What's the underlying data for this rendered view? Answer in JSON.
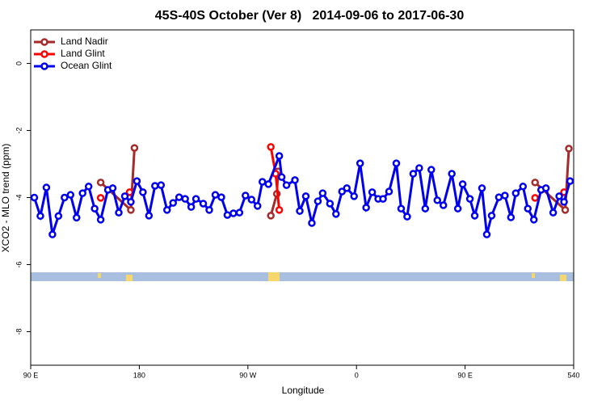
{
  "chart_data": {
    "type": "line",
    "title": "45S-40S October (Ver 8)   2014-09-06 to 2017-06-30",
    "xlabel": "Longitude",
    "ylabel": "XCO2 - MLO trend (ppm)",
    "xlim": [
      90,
      540
    ],
    "xticks": [
      {
        "value": 90,
        "label": "90 E"
      },
      180,
      {
        "value": 270,
        "label": "90 W"
      },
      {
        "value": 360,
        "label": "0"
      },
      {
        "value": 450,
        "label": "90 E"
      },
      540
    ],
    "ylim": [
      -9,
      1
    ],
    "yticks": [
      0,
      -2,
      -4,
      -6,
      -8
    ],
    "legend": "top-left",
    "series": [
      {
        "name": "Land Nadir",
        "color": "#a52a2a",
        "x": [
          148,
          173,
          176,
          null,
          289,
          294,
          295,
          null,
          508,
          533,
          536
        ],
        "values": [
          -3.55,
          -4.37,
          -2.52,
          null,
          -4.54,
          -3.89,
          -3.22,
          null,
          -3.55,
          -4.37,
          -2.54
        ]
      },
      {
        "name": "Land Glint",
        "color": "#ff0000",
        "x": [
          148,
          null,
          172,
          null,
          289,
          293,
          296,
          null,
          508,
          null,
          532
        ],
        "values": [
          -4.01,
          null,
          -3.84,
          null,
          -2.49,
          -3.29,
          -4.37,
          null,
          -4.01,
          null,
          -3.84
        ]
      },
      {
        "name": "Ocean Glint",
        "color": "#0000ee",
        "x": [
          93,
          98,
          103,
          108,
          113,
          118,
          123,
          128,
          133,
          138,
          143,
          148,
          154,
          158,
          163,
          168,
          173,
          178,
          183,
          188,
          193,
          198,
          203,
          208,
          213,
          218,
          223,
          227,
          233,
          238,
          243,
          248,
          253,
          258,
          263,
          268,
          273,
          278,
          282,
          287,
          296,
          298,
          302,
          309,
          313,
          318,
          323,
          328,
          332,
          338,
          343,
          348,
          352,
          358,
          363,
          368,
          373,
          378,
          382,
          387,
          393,
          397,
          402,
          407,
          412,
          417,
          422,
          427,
          432,
          439,
          444,
          448,
          454,
          458,
          464,
          468,
          472,
          478,
          483,
          488,
          492,
          498,
          502,
          507,
          513,
          517,
          523,
          528,
          532,
          537
        ],
        "values": [
          -4.0,
          -4.55,
          -3.7,
          -5.1,
          -4.55,
          -4.0,
          -3.92,
          -4.6,
          -3.87,
          -3.67,
          -4.33,
          -4.66,
          -3.77,
          -3.72,
          -4.45,
          -3.96,
          -4.13,
          -3.51,
          -3.84,
          -4.54,
          -3.65,
          -3.63,
          -4.37,
          -4.16,
          -3.99,
          -4.04,
          -4.28,
          -4.04,
          -4.18,
          -4.37,
          -3.92,
          -3.99,
          -4.52,
          -4.47,
          -4.45,
          -3.94,
          -4.06,
          -4.25,
          -3.53,
          -3.6,
          -2.76,
          -3.39,
          -3.63,
          -3.48,
          -4.4,
          -3.96,
          -4.76,
          -4.11,
          -3.87,
          -4.18,
          -4.49,
          -3.82,
          -3.72,
          -3.96,
          -2.98,
          -4.3,
          -3.84,
          -4.04,
          -4.04,
          -3.82,
          -2.98,
          -4.33,
          -4.57,
          -3.29,
          -3.12,
          -4.33,
          -3.17,
          -4.08,
          -4.23,
          -3.29,
          -4.33,
          -3.6,
          -4.04,
          -4.54,
          -3.72,
          -5.1,
          -4.54,
          -3.99,
          -3.94,
          -4.59,
          -3.87,
          -3.67,
          -4.33,
          -4.66,
          -3.77,
          -3.72,
          -4.45,
          -3.96,
          -4.13,
          -3.51
        ]
      }
    ]
  }
}
